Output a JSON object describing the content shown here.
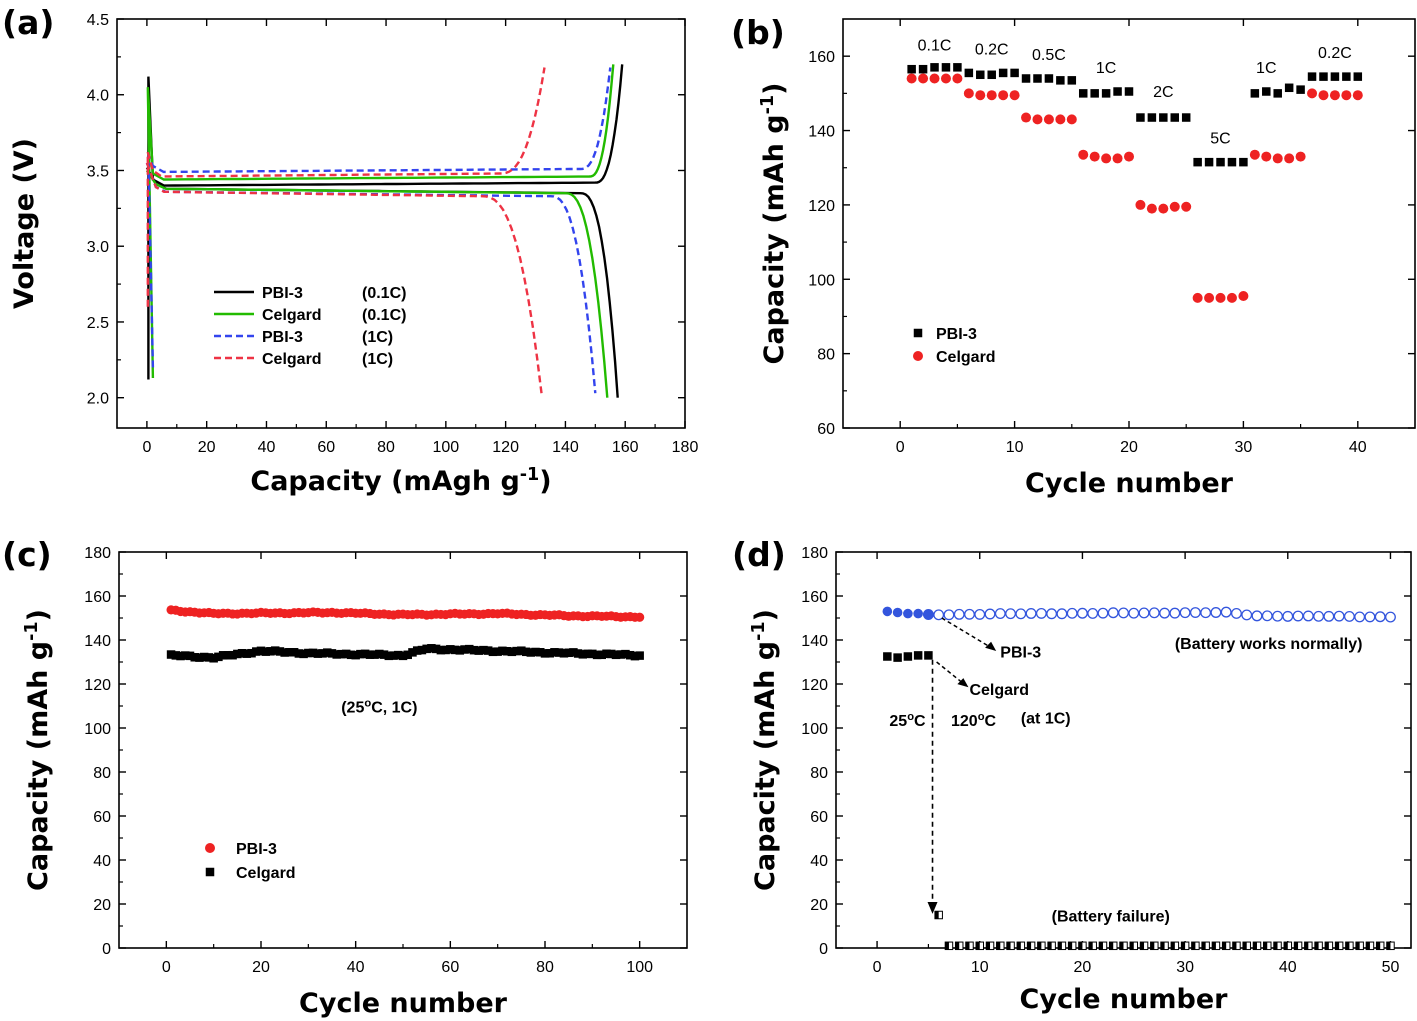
{
  "chart_data": [
    {
      "panel_label": "(a)",
      "type": "line",
      "xlabel": "Capacity (mAgh g",
      "xlabel_sup": "-1",
      "xlabel_end": ")",
      "ylabel": "Voltage (V)",
      "xlim": [
        -10,
        180
      ],
      "ylim": [
        1.8,
        4.5
      ],
      "xticks": [
        0,
        20,
        40,
        60,
        80,
        100,
        120,
        140,
        160,
        180
      ],
      "yticks": [
        2.0,
        2.5,
        3.0,
        3.5,
        4.0,
        4.5
      ],
      "ytick_labels": [
        "2.0",
        "2.5",
        "3.0",
        "3.5",
        "4.0",
        "4.5"
      ],
      "legend_position": "lower-left",
      "series": [
        {
          "name": "PBI-3",
          "cond": "(0.1C)",
          "color": "#000000",
          "dash": "solid",
          "charge": {
            "start": [
              0.5,
              2.12
            ],
            "spike": [
              0.5,
              4.12
            ],
            "plateau": 3.4,
            "knee": 150,
            "end": [
              159,
              4.2
            ]
          },
          "discharge": {
            "start": [
              0,
              3.52
            ],
            "plateau": 3.38,
            "knee": 145,
            "end": [
              157.5,
              2.0
            ]
          }
        },
        {
          "name": "Celgard",
          "cond": "(0.1C)",
          "color": "#22bb00",
          "dash": "solid",
          "charge": {
            "start": [
              2,
              2.13
            ],
            "spike": [
              0.3,
              4.05
            ],
            "plateau": 3.44,
            "knee": 148,
            "end": [
              156,
              4.2
            ]
          },
          "discharge": {
            "start": [
              0,
              3.5
            ],
            "plateau": 3.38,
            "knee": 140,
            "end": [
              154,
              2.0
            ]
          }
        },
        {
          "name": "PBI-3",
          "cond": "(1C)",
          "color": "#3344ee",
          "dash": "dashed",
          "charge": {
            "start": [
              2,
              2.2
            ],
            "spike": [
              0.5,
              3.6
            ],
            "plateau": 3.49,
            "knee": 145,
            "end": [
              155,
              4.18
            ]
          },
          "discharge": {
            "start": [
              0,
              3.55
            ],
            "plateau": 3.36,
            "knee": 135,
            "end": [
              150,
              2.03
            ]
          }
        },
        {
          "name": "Celgard",
          "cond": "(1C)",
          "color": "#ee3344",
          "dash": "dashed",
          "charge": {
            "start": [
              0.3,
              2.6
            ],
            "spike": [
              0.3,
              3.62
            ],
            "plateau": 3.46,
            "knee": 118,
            "end": [
              133,
              4.18
            ]
          },
          "discharge": {
            "start": [
              0,
              3.55
            ],
            "plateau": 3.36,
            "knee": 112,
            "end": [
              132,
              2.03
            ]
          }
        }
      ]
    },
    {
      "panel_label": "(b)",
      "type": "scatter",
      "xlabel": "Cycle number",
      "ylabel": "Capacity (mAh g",
      "ylabel_sup": "-1",
      "ylabel_end": ")",
      "xlim": [
        -5,
        45
      ],
      "ylim": [
        60,
        170
      ],
      "xticks": [
        0,
        10,
        20,
        30,
        40
      ],
      "yticks": [
        60,
        80,
        100,
        120,
        140,
        160
      ],
      "legend_position": "lower-left",
      "series": [
        {
          "name": "PBI-3",
          "color": "#000000",
          "marker": "square",
          "x": [
            1,
            2,
            3,
            4,
            5,
            6,
            7,
            8,
            9,
            10,
            11,
            12,
            13,
            14,
            15,
            16,
            17,
            18,
            19,
            20,
            21,
            22,
            23,
            24,
            25,
            26,
            27,
            28,
            29,
            30,
            31,
            32,
            33,
            34,
            35,
            36,
            37,
            38,
            39,
            40
          ],
          "y": [
            156.5,
            156.5,
            157,
            157,
            157,
            155.5,
            155,
            155,
            155.5,
            155.5,
            154,
            154,
            154,
            153.5,
            153.5,
            150,
            150,
            150,
            150.5,
            150.5,
            143.5,
            143.5,
            143.5,
            143.5,
            143.5,
            131.5,
            131.5,
            131.5,
            131.5,
            131.5,
            150,
            150.5,
            150,
            151.5,
            151,
            154.5,
            154.5,
            154.5,
            154.5,
            154.5
          ]
        },
        {
          "name": "Celgard",
          "color": "#ee2222",
          "marker": "circle",
          "x": [
            1,
            2,
            3,
            4,
            5,
            6,
            7,
            8,
            9,
            10,
            11,
            12,
            13,
            14,
            15,
            16,
            17,
            18,
            19,
            20,
            21,
            22,
            23,
            24,
            25,
            26,
            27,
            28,
            29,
            30,
            31,
            32,
            33,
            34,
            35,
            36,
            37,
            38,
            39,
            40
          ],
          "y": [
            154,
            154,
            154,
            154,
            154,
            150,
            149.5,
            149.5,
            149.5,
            149.5,
            143.5,
            143,
            143,
            143,
            143,
            133.5,
            133,
            132.5,
            132.5,
            133,
            120,
            119,
            119,
            119.5,
            119.5,
            95,
            95,
            95,
            95,
            95.5,
            133.5,
            133,
            132.5,
            132.5,
            133,
            150,
            149.5,
            149.5,
            149.5,
            149.5
          ]
        }
      ],
      "rate_labels": [
        {
          "text": "0.1C",
          "x": 3,
          "y": 161.5
        },
        {
          "text": "0.2C",
          "x": 8,
          "y": 160.5
        },
        {
          "text": "0.5C",
          "x": 13,
          "y": 159
        },
        {
          "text": "1C",
          "x": 18,
          "y": 155.5
        },
        {
          "text": "2C",
          "x": 23,
          "y": 149
        },
        {
          "text": "5C",
          "x": 28,
          "y": 136.5
        },
        {
          "text": "1C",
          "x": 32,
          "y": 155.5
        },
        {
          "text": "0.2C",
          "x": 38,
          "y": 159.5
        }
      ]
    },
    {
      "panel_label": "(c)",
      "type": "scatter",
      "xlabel": "Cycle number",
      "ylabel": "Capacity (mAh g",
      "ylabel_sup": "-1",
      "ylabel_end": ")",
      "xlim": [
        -10,
        110
      ],
      "ylim": [
        0,
        180
      ],
      "xticks": [
        0,
        20,
        40,
        60,
        80,
        100
      ],
      "yticks": [
        0,
        20,
        40,
        60,
        80,
        100,
        120,
        140,
        160,
        180
      ],
      "legend_position": "lower-left",
      "annotation": {
        "text": "(25 °C, 1C)",
        "x": 45,
        "y": 107
      },
      "series": [
        {
          "name": "PBI-3",
          "color": "#ee2222",
          "marker": "circle",
          "x_range": [
            1,
            100
          ],
          "approx_value": 152,
          "keypoints": [
            [
              1,
              153.5
            ],
            [
              10,
              152
            ],
            [
              35,
              152.5
            ],
            [
              50,
              151.5
            ],
            [
              70,
              152
            ],
            [
              85,
              151
            ],
            [
              100,
              150.5
            ]
          ]
        },
        {
          "name": "Celgard",
          "color": "#000000",
          "marker": "square",
          "x_range": [
            1,
            100
          ],
          "approx_value": 134,
          "keypoints": [
            [
              1,
              133
            ],
            [
              10,
              132
            ],
            [
              20,
              135
            ],
            [
              30,
              134
            ],
            [
              50,
              133
            ],
            [
              55,
              136
            ],
            [
              70,
              135
            ],
            [
              85,
              134
            ],
            [
              100,
              133
            ]
          ]
        }
      ]
    },
    {
      "panel_label": "(d)",
      "type": "scatter",
      "xlabel": "Cycle number",
      "ylabel": "Capacity (mAh g",
      "ylabel_sup": "-1",
      "ylabel_end": ")",
      "xlim": [
        -4,
        52
      ],
      "ylim": [
        0,
        180
      ],
      "xticks": [
        0,
        10,
        20,
        30,
        40,
        50
      ],
      "yticks": [
        0,
        20,
        40,
        60,
        80,
        100,
        120,
        140,
        160,
        180
      ],
      "series": [
        {
          "name": "PBI-3 (25 °C)",
          "color": "#3355dd",
          "marker": "circle-filled",
          "x": [
            1,
            2,
            3,
            4,
            5
          ],
          "y": [
            153,
            152.5,
            152,
            152,
            151.5
          ]
        },
        {
          "name": "PBI-3 (120 °C)",
          "color": "#3355dd",
          "marker": "circle-open",
          "x_range": [
            5,
            50
          ],
          "approx_value": 151.5,
          "keypoints": [
            [
              5,
              151.5
            ],
            [
              15,
              152
            ],
            [
              34,
              152.5
            ],
            [
              37,
              151
            ],
            [
              50,
              150.5
            ]
          ]
        },
        {
          "name": "Celgard (25 °C)",
          "color": "#000000",
          "marker": "square-filled",
          "x": [
            1,
            2,
            3,
            4,
            5
          ],
          "y": [
            132.5,
            132,
            132.5,
            133,
            133
          ]
        },
        {
          "name": "Celgard (120 °C)",
          "color": "#000000",
          "marker": "square-half",
          "x": [
            6
          ],
          "y": [
            15
          ]
        },
        {
          "name": "Celgard failure",
          "color": "#000000",
          "marker": "square-half",
          "x_range": [
            7,
            50
          ],
          "approx_value": 1
        }
      ],
      "annotations": [
        {
          "text": "PBI-3",
          "x": 12,
          "y": 132
        },
        {
          "text": "(Battery works normally)",
          "x": 29,
          "y": 136
        },
        {
          "text": "Celgard",
          "x": 9,
          "y": 115
        },
        {
          "text": "25 °C",
          "x": 1.2,
          "y": 101
        },
        {
          "text": "120 °C",
          "x": 7.2,
          "y": 101
        },
        {
          "text": "(at 1C)",
          "x": 14,
          "y": 102
        },
        {
          "text": "(Battery failure)",
          "x": 17,
          "y": 12
        }
      ]
    }
  ]
}
